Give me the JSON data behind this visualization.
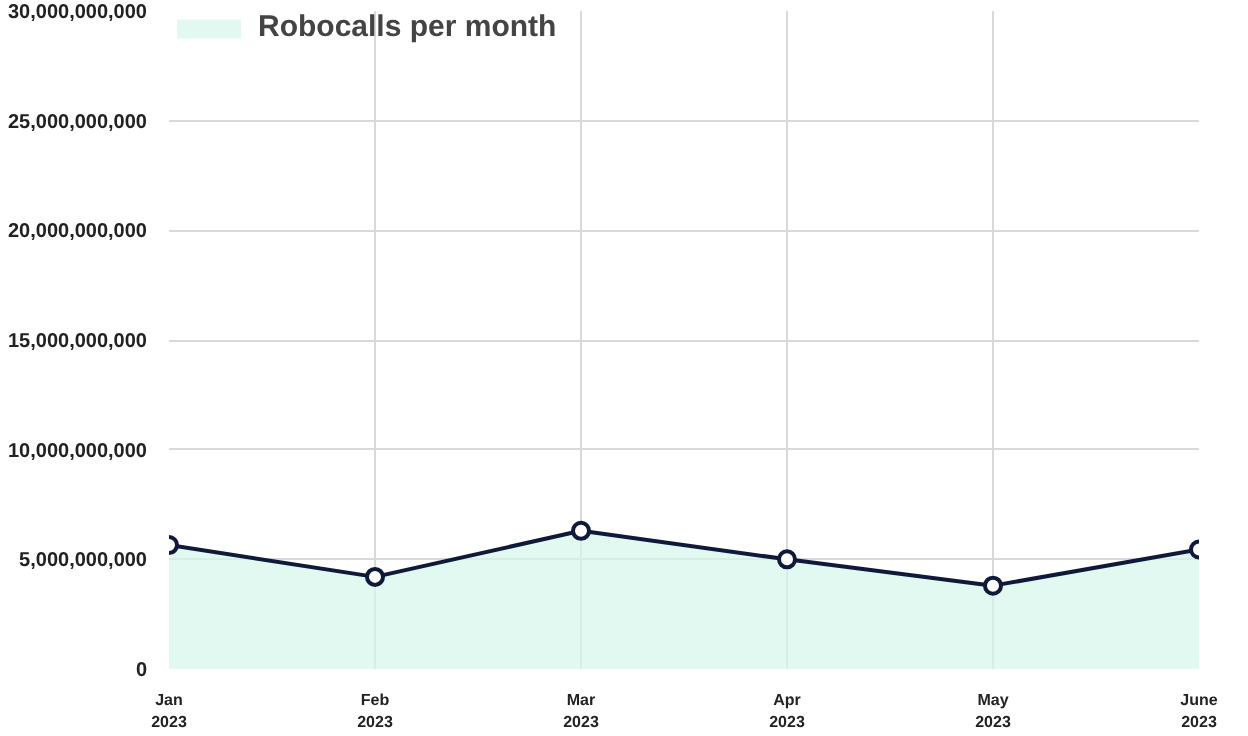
{
  "chart_data": {
    "type": "area",
    "categories": [
      "Jan 2023",
      "Feb 2023",
      "Mar 2023",
      "Apr 2023",
      "May 2023",
      "June 2023"
    ],
    "series": [
      {
        "name": "Robocalls per month",
        "color": "#d4f7ea",
        "values": [
          5650000000,
          4200000000,
          6300000000,
          5000000000,
          3800000000,
          5450000000
        ]
      }
    ],
    "ylim": [
      0,
      30000000000
    ],
    "yticks": [
      {
        "value": 0,
        "label": "0"
      },
      {
        "value": 5000000000,
        "label": "5,000,000,000"
      },
      {
        "value": 10000000000,
        "label": "10,000,000,000"
      },
      {
        "value": 15000000000,
        "label": "15,000,000,000"
      },
      {
        "value": 20000000000,
        "label": "20,000,000,000"
      },
      {
        "value": 25000000000,
        "label": "25,000,000,000"
      },
      {
        "value": 30000000000,
        "label": "30,000,000,000"
      }
    ],
    "grid": true,
    "legend": "top left",
    "marker": "circle",
    "line_style": "solid"
  }
}
